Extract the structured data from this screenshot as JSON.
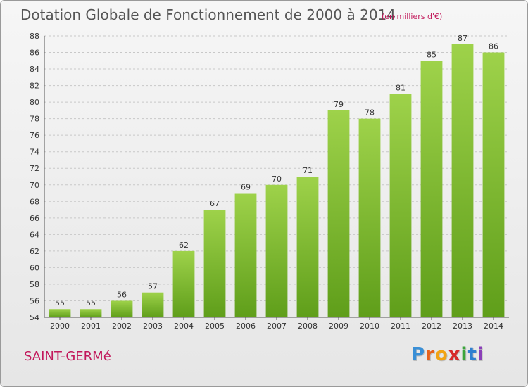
{
  "chart_data": {
    "type": "bar",
    "title": "Dotation Globale de Fonctionnement de 2000 à 2014",
    "subtitle": "(en milliers d'€)",
    "categories": [
      "2000",
      "2001",
      "2002",
      "2003",
      "2004",
      "2005",
      "2006",
      "2007",
      "2008",
      "2009",
      "2010",
      "2011",
      "2012",
      "2013",
      "2014"
    ],
    "values": [
      55,
      55,
      56,
      57,
      62,
      67,
      69,
      70,
      71,
      79,
      78,
      81,
      85,
      87,
      86
    ],
    "ylim": [
      54,
      88
    ],
    "yticks": [
      54,
      56,
      58,
      60,
      62,
      64,
      66,
      68,
      70,
      72,
      74,
      76,
      78,
      80,
      82,
      84,
      86,
      88
    ],
    "grid": true,
    "bar_color": "#7fbf2f"
  },
  "footer": {
    "commune": "SAINT-GERMé",
    "brand_letters": [
      {
        "ch": "P",
        "color": "#3a8fd6"
      },
      {
        "ch": "r",
        "color": "#e8611a"
      },
      {
        "ch": "o",
        "color": "#f2a313"
      },
      {
        "ch": "x",
        "color": "#d62a2a"
      },
      {
        "ch": "i",
        "color": "#3aa53a"
      },
      {
        "ch": "t",
        "color": "#2f7fd0"
      },
      {
        "ch": "i",
        "color": "#8a3fb8"
      }
    ]
  }
}
